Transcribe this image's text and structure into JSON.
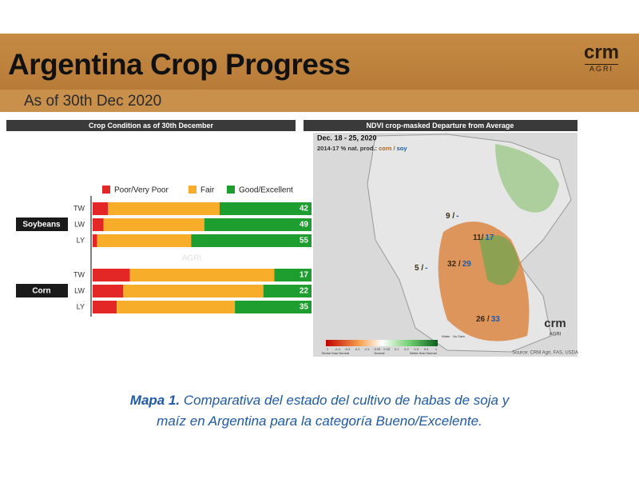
{
  "header": {
    "title": "Argentina Crop Progress",
    "subtitle": "As of 30th Dec 2020",
    "logo": "crm",
    "logo_sub": "AGRI"
  },
  "chart_data": {
    "type": "bar",
    "orientation": "horizontal",
    "stacked": true,
    "title": "Crop Condition as of 30th December",
    "groups": [
      "Soybeans",
      "Corn"
    ],
    "categories": [
      "TW",
      "LW",
      "LY",
      "TW",
      "LW",
      "LY"
    ],
    "series": [
      {
        "name": "Poor/Very Poor",
        "color": "#e32626",
        "values": [
          7,
          5,
          2,
          17,
          14,
          11
        ]
      },
      {
        "name": "Fair",
        "color": "#f7ad2a",
        "values": [
          51,
          46,
          43,
          66,
          64,
          54
        ]
      },
      {
        "name": "Good/Excellent",
        "color": "#1e9e2e",
        "values": [
          42,
          49,
          55,
          17,
          22,
          35
        ],
        "show_labels": true
      }
    ],
    "xlim": [
      0,
      100
    ],
    "legend": "top",
    "watermark": "crm",
    "watermark_sub": "AGRI"
  },
  "map": {
    "title": "NDVI crop-masked Departure from Average",
    "date": "Dec. 18 - 25, 2020",
    "subtitle": {
      "prefix": "2014-17 % nat. prod.:",
      "corn": "corn /",
      "soy": "soy"
    },
    "labels": [
      {
        "corn": "9 /",
        "soy": "-"
      },
      {
        "corn": "11/",
        "soy": "17"
      },
      {
        "corn": "5 /",
        "soy": "-"
      },
      {
        "corn": "32 /",
        "soy": "29"
      },
      {
        "corn": "26 /",
        "soy": "33"
      }
    ],
    "scale": [
      "1",
      "-0.4",
      "-0.3",
      "-0.2",
      "-0.1",
      "-0.05",
      "0.05",
      "0.1",
      "0.2",
      "0.3",
      "0.4",
      "1"
    ],
    "scale_notes": [
      "Worse than Normal",
      "Normal",
      "Better than Normal"
    ],
    "scale_extra": [
      "Water",
      "No Data"
    ],
    "source": "Source: CRM Agri, FAS, USDA",
    "logo": "crm",
    "logo_sub": "AGRI"
  },
  "caption": {
    "label": "Mapa 1.",
    "line1": "Comparativa del estado del cultivo de habas de soja y",
    "line2": "maíz en Argentina para la categoría Bueno/Excelente."
  }
}
